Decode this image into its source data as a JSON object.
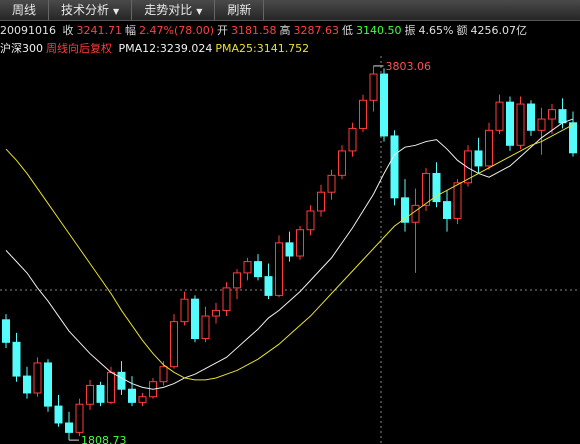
{
  "toolbar": [
    "周线",
    "技术分析",
    "走势对比",
    "刷新"
  ],
  "info": {
    "date": "20091016",
    "items": [
      {
        "label": "收",
        "value": "3241.71",
        "color": "#ff4040"
      },
      {
        "label": "幅",
        "value": "2.47%(78.00)",
        "color": "#ff4040"
      },
      {
        "label": "开",
        "value": "3181.58",
        "color": "#ff4040"
      },
      {
        "label": "高",
        "value": "3287.63",
        "color": "#ff4040"
      },
      {
        "label": "低",
        "value": "3140.50",
        "color": "#40ff40"
      },
      {
        "label": "振",
        "value": "4.65%",
        "color": "#e0e0e0"
      },
      {
        "label": "额",
        "value": "4256.07亿",
        "color": "#e0e0e0"
      }
    ]
  },
  "chart_data": {
    "type": "candlestick",
    "title": "沪深300",
    "subtitle": "周线向后复权",
    "up_color": "#ff3c3c",
    "down_color": "#54fcfc",
    "ylim": [
      1788,
      3856
    ],
    "open": [
      2450,
      2330,
      2150,
      2060,
      2220,
      1990,
      1900,
      1850,
      2000,
      2100,
      2010,
      2170,
      2080,
      2010,
      2040,
      2120,
      2200,
      2440,
      2560,
      2350,
      2470,
      2500,
      2620,
      2700,
      2760,
      2680,
      2580,
      2860,
      2790,
      2930,
      3030,
      3130,
      3220,
      3350,
      3470,
      3620,
      3760,
      3430,
      3100,
      2970,
      3060,
      3230,
      3080,
      2990,
      3180,
      3350,
      3270,
      3460,
      3610,
      3380,
      3600,
      3460,
      3520,
      3570,
      3500
    ],
    "high": [
      2480,
      2380,
      2200,
      2250,
      2240,
      2050,
      1960,
      2030,
      2130,
      2120,
      2200,
      2230,
      2150,
      2060,
      2140,
      2230,
      2480,
      2600,
      2580,
      2520,
      2540,
      2650,
      2720,
      2780,
      2800,
      2750,
      2900,
      2920,
      2950,
      3060,
      3170,
      3250,
      3380,
      3500,
      3650,
      3803.06,
      3790,
      3460,
      3200,
      3150,
      3260,
      3290,
      3140,
      3200,
      3380,
      3420,
      3500,
      3650,
      3640,
      3640,
      3620,
      3580,
      3600,
      3630,
      3560
    ],
    "low": [
      2300,
      2120,
      2030,
      2040,
      1960,
      1880,
      1808.73,
      1830,
      1970,
      1990,
      2000,
      2050,
      1990,
      1990,
      2030,
      2100,
      2190,
      2420,
      2330,
      2330,
      2430,
      2470,
      2560,
      2660,
      2660,
      2560,
      2570,
      2760,
      2770,
      2900,
      3000,
      3090,
      3200,
      3320,
      3450,
      3560,
      3400,
      3060,
      2920,
      2700,
      3030,
      3050,
      2920,
      2960,
      3160,
      3230,
      3250,
      3440,
      3350,
      3360,
      3430,
      3330,
      3440,
      3470,
      3320
    ],
    "close": [
      2330,
      2150,
      2060,
      2220,
      1990,
      1900,
      1850,
      2000,
      2100,
      2010,
      2170,
      2080,
      2010,
      2040,
      2120,
      2200,
      2440,
      2560,
      2350,
      2470,
      2500,
      2620,
      2700,
      2760,
      2680,
      2580,
      2860,
      2790,
      2930,
      3030,
      3130,
      3220,
      3350,
      3470,
      3620,
      3760,
      3430,
      3100,
      2970,
      3060,
      3230,
      3080,
      2990,
      3180,
      3350,
      3270,
      3460,
      3610,
      3380,
      3600,
      3460,
      3520,
      3570,
      3500,
      3340
    ],
    "series": [
      {
        "name": "PMA12:3239.024",
        "color": "#f0f0f0",
        "values": [
          2820,
          2760,
          2700,
          2620,
          2550,
          2470,
          2390,
          2330,
          2270,
          2220,
          2170,
          2140,
          2110,
          2090,
          2080,
          2090,
          2110,
          2140,
          2160,
          2190,
          2220,
          2250,
          2300,
          2350,
          2400,
          2460,
          2500,
          2550,
          2600,
          2660,
          2720,
          2780,
          2860,
          2940,
          3030,
          3120,
          3230,
          3330,
          3370,
          3380,
          3400,
          3410,
          3360,
          3300,
          3260,
          3230,
          3210,
          3240,
          3270,
          3320,
          3370,
          3420,
          3460,
          3500,
          3520
        ]
      },
      {
        "name": "PMA25:3141.752",
        "color": "#e8e030",
        "values": [
          3360,
          3300,
          3230,
          3150,
          3070,
          2990,
          2910,
          2830,
          2750,
          2670,
          2590,
          2500,
          2420,
          2340,
          2270,
          2210,
          2170,
          2140,
          2130,
          2130,
          2140,
          2160,
          2180,
          2210,
          2240,
          2280,
          2320,
          2370,
          2420,
          2470,
          2530,
          2590,
          2650,
          2710,
          2770,
          2830,
          2890,
          2950,
          2990,
          3030,
          3070,
          3110,
          3140,
          3170,
          3200,
          3230,
          3260,
          3290,
          3320,
          3350,
          3380,
          3400,
          3430,
          3460,
          3490
        ]
      }
    ],
    "max_label": 3803.06,
    "min_label": 1808.73
  }
}
